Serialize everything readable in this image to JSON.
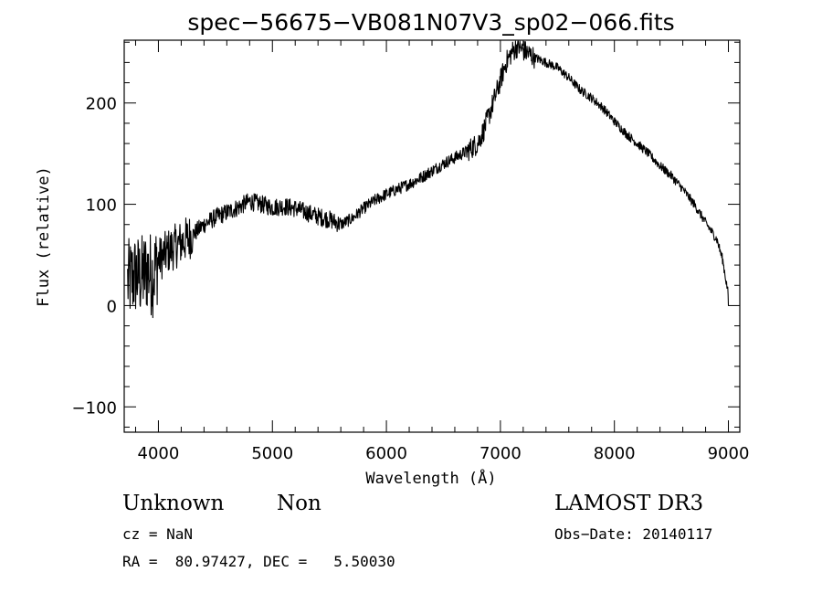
{
  "chart_data": {
    "type": "line",
    "title": "spec−56675−VB081N07V3_sp02−066.fits",
    "xlabel": "Wavelength (Å)",
    "ylabel": "Flux (relative)",
    "xlim": [
      3700,
      9100
    ],
    "ylim": [
      -125,
      262
    ],
    "x_ticks": [
      4000,
      5000,
      6000,
      7000,
      8000,
      9000
    ],
    "x_tick_labels": [
      "4000",
      "5000",
      "6000",
      "7000",
      "8000",
      "9000"
    ],
    "y_ticks": [
      -100,
      0,
      100,
      200
    ],
    "y_tick_labels": [
      "−100",
      "0",
      "100",
      "200"
    ],
    "grid": false,
    "series": [
      {
        "name": "flux",
        "x": [
          3700,
          3750,
          3800,
          3850,
          3900,
          3950,
          4000,
          4100,
          4200,
          4300,
          4400,
          4500,
          4600,
          4700,
          4800,
          4900,
          5000,
          5100,
          5200,
          5300,
          5400,
          5500,
          5600,
          5700,
          5800,
          5900,
          6000,
          6100,
          6200,
          6300,
          6400,
          6500,
          6600,
          6700,
          6800,
          6850,
          6900,
          6950,
          7000,
          7050,
          7100,
          7150,
          7200,
          7300,
          7400,
          7500,
          7600,
          7700,
          7800,
          7900,
          8000,
          8100,
          8200,
          8300,
          8400,
          8500,
          8600,
          8700,
          8800,
          8900,
          8950,
          9000
        ],
        "y": [
          20,
          25,
          30,
          28,
          35,
          30,
          45,
          55,
          62,
          70,
          80,
          87,
          92,
          97,
          103,
          100,
          97,
          98,
          96,
          92,
          88,
          85,
          80,
          86,
          96,
          104,
          110,
          115,
          120,
          126,
          133,
          140,
          146,
          152,
          160,
          172,
          188,
          205,
          222,
          240,
          250,
          256,
          252,
          245,
          240,
          235,
          225,
          213,
          205,
          195,
          182,
          170,
          160,
          150,
          138,
          128,
          115,
          100,
          82,
          65,
          45,
          10
        ]
      }
    ]
  },
  "info": {
    "object_class": "Unknown",
    "object_subclass": "Non",
    "cz": "cz = NaN",
    "coords": "RA =  80.97427, DEC =   5.50030",
    "survey": "LAMOST DR3",
    "obs_date": "Obs−Date: 20140117"
  }
}
